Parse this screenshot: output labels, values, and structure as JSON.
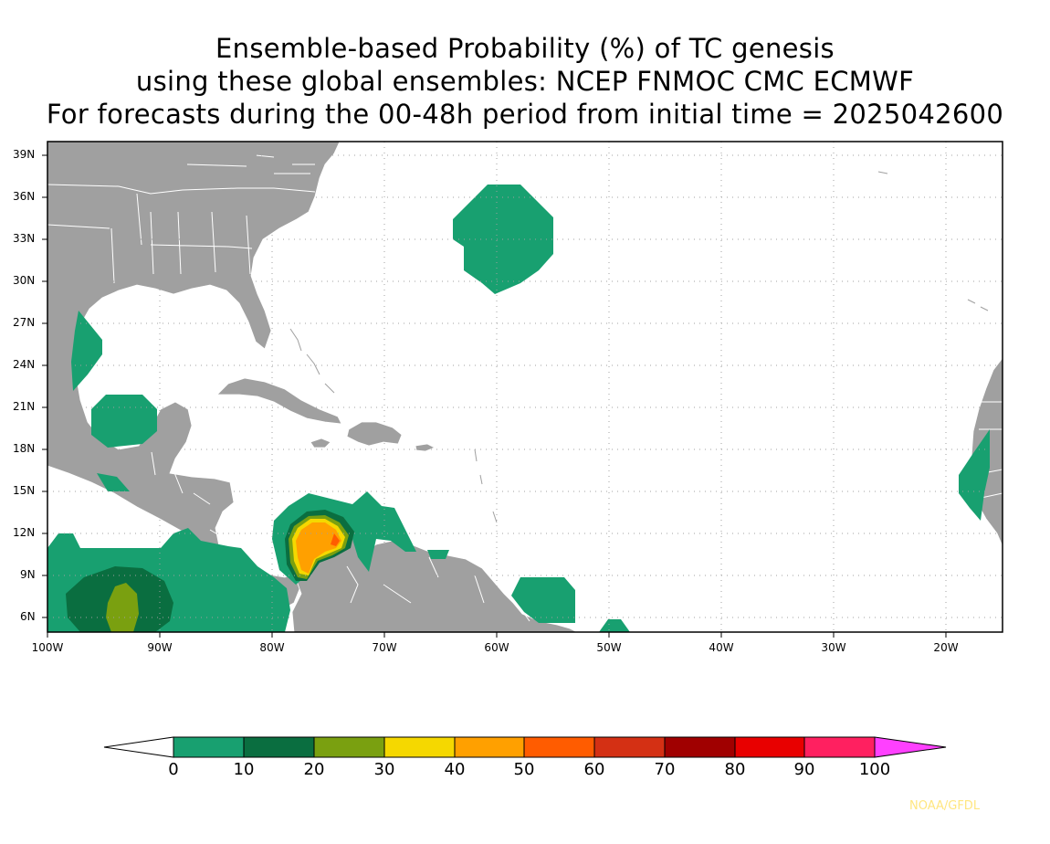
{
  "title": {
    "line1": "Ensemble-based Probability (%) of TC genesis",
    "line2": "using these global ensembles:   NCEP FNMOC CMC ECMWF",
    "line3": "For forecasts during the 00-48h period from initial time = 2025042600"
  },
  "map": {
    "lat_labels": [
      "39N",
      "36N",
      "33N",
      "30N",
      "27N",
      "24N",
      "21N",
      "18N",
      "15N",
      "12N",
      "9N",
      "6N"
    ],
    "lon_labels": [
      "100W",
      "90W",
      "80W",
      "70W",
      "60W",
      "50W",
      "40W",
      "30W",
      "20W"
    ],
    "land_color": "#a0a0a0",
    "ocean_color": "#ffffff"
  },
  "colorbar": {
    "labels": [
      "0",
      "10",
      "20",
      "30",
      "40",
      "50",
      "60",
      "70",
      "80",
      "90",
      "100"
    ],
    "colors": [
      "#ffffff",
      "#18a070",
      "#0a6e40",
      "#7aa010",
      "#f5d800",
      "#ffa000",
      "#ff5c00",
      "#d43014",
      "#a00000",
      "#e80000",
      "#ff2060",
      "#ff40ff"
    ]
  },
  "credit": "NOAA/GFDL"
}
